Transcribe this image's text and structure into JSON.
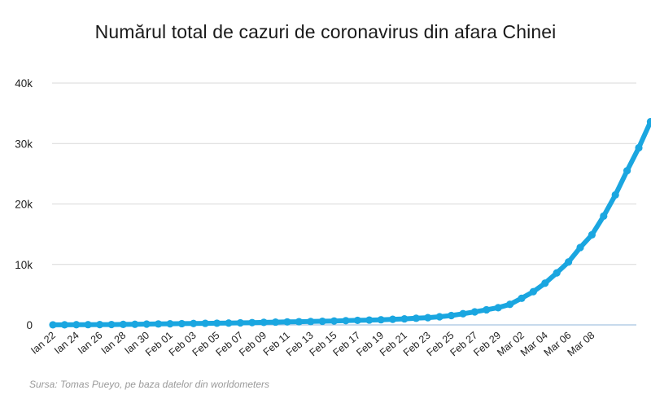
{
  "chart_data": {
    "type": "line",
    "title": "Numărul total de cazuri de coronavirus din afara Chinei",
    "source": "Sursa: Tomas Pueyo, pe baza datelor din worldometers",
    "ylim": [
      0,
      40000
    ],
    "y_ticks": [
      0,
      10000,
      20000,
      30000,
      40000
    ],
    "y_tick_labels": [
      "0",
      "10k",
      "20k",
      "30k",
      "40k"
    ],
    "grid": true,
    "legend": "none",
    "line_color": "#1aa6e0",
    "x_tick_labels": [
      "Ian 22",
      "Ian 24",
      "Ian 26",
      "Ian 28",
      "Ian 30",
      "Feb 01",
      "Feb 03",
      "Feb 05",
      "Feb 07",
      "Feb 09",
      "Feb 11",
      "Feb 13",
      "Feb 15",
      "Feb 17",
      "Feb 19",
      "Feb 21",
      "Feb 23",
      "Feb 25",
      "Feb 27",
      "Feb 29",
      "Mar 02",
      "Mar 04",
      "Mar 06",
      "Mar 08"
    ],
    "values": [
      10,
      20,
      30,
      40,
      50,
      60,
      80,
      100,
      130,
      160,
      190,
      210,
      240,
      260,
      280,
      300,
      340,
      380,
      420,
      460,
      500,
      530,
      560,
      600,
      650,
      700,
      750,
      800,
      850,
      930,
      1000,
      1100,
      1200,
      1350,
      1550,
      1850,
      2150,
      2500,
      2850,
      3400,
      4400,
      5500,
      6900,
      8600,
      10400,
      12800,
      14900,
      18000,
      21500,
      25500,
      29300,
      33600
    ]
  }
}
